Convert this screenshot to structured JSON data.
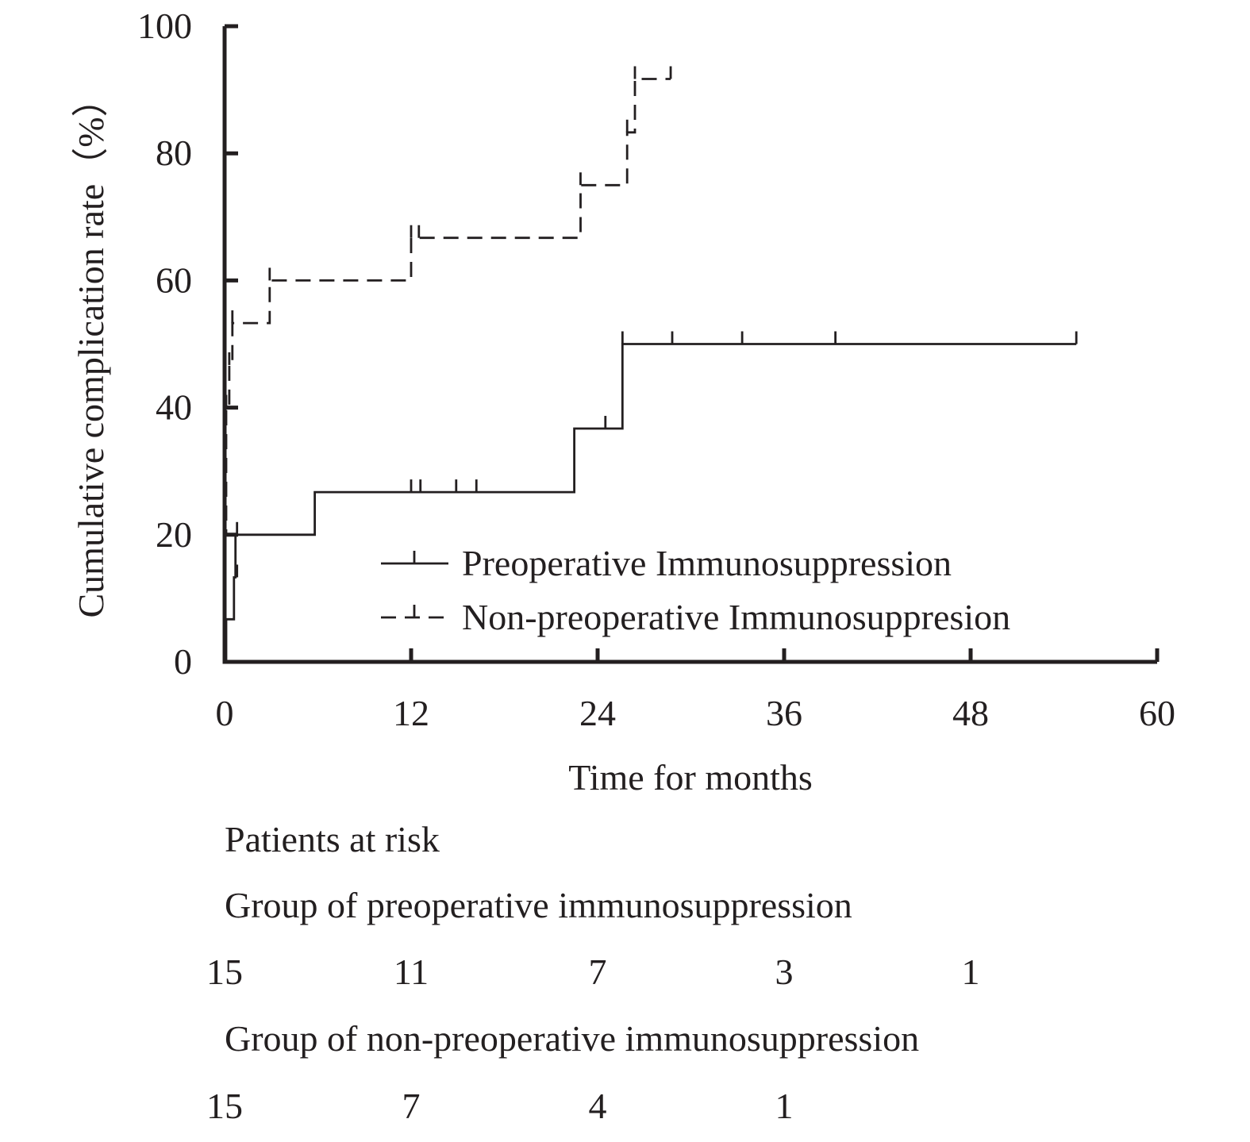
{
  "chart_data": {
    "type": "line",
    "subtype": "kaplan-meier-cumulative-incidence",
    "title": "",
    "xlabel": "Time for months",
    "ylabel": "Cumulative complication rate（%）",
    "xlim": [
      0,
      60
    ],
    "ylim": [
      0,
      100
    ],
    "x_ticks": [
      "0",
      "12",
      "24",
      "36",
      "48",
      "60"
    ],
    "y_ticks": [
      "0",
      "20",
      "40",
      "60",
      "80",
      "100"
    ],
    "grid": false,
    "legend_position": "bottom-right inside plot",
    "series": [
      {
        "name": "Preoperative Immunosuppression",
        "line_style": "solid",
        "steps": [
          [
            0,
            0
          ],
          [
            0.1,
            6.7
          ],
          [
            0.6,
            13.3
          ],
          [
            0.7,
            20
          ],
          [
            5.8,
            26.7
          ],
          [
            22.5,
            36.7
          ],
          [
            25.6,
            50
          ],
          [
            54.8,
            50
          ]
        ],
        "censored": [
          [
            0.8,
            13.3
          ],
          [
            0.8,
            20
          ],
          [
            12,
            26.7
          ],
          [
            12.6,
            26.7
          ],
          [
            14.9,
            26.7
          ],
          [
            16.2,
            26.7
          ],
          [
            24.5,
            36.7
          ],
          [
            25.6,
            50
          ],
          [
            28.8,
            50
          ],
          [
            33.3,
            50
          ],
          [
            39.3,
            50
          ],
          [
            54.8,
            50
          ]
        ]
      },
      {
        "name": "Non-preoperative Immunosuppresion",
        "line_style": "dashed",
        "steps": [
          [
            0,
            0
          ],
          [
            0.05,
            20
          ],
          [
            0.1,
            40
          ],
          [
            0.3,
            46.7
          ],
          [
            0.5,
            53.3
          ],
          [
            2.9,
            60
          ],
          [
            12,
            66.7
          ],
          [
            22.9,
            75
          ],
          [
            25.9,
            83.3
          ],
          [
            26.4,
            91.7
          ],
          [
            28.7,
            91.7
          ]
        ],
        "censored": [
          [
            0.1,
            40
          ],
          [
            0.3,
            46.7
          ],
          [
            0.5,
            53.3
          ],
          [
            2.9,
            60
          ],
          [
            12,
            66.7
          ],
          [
            12.5,
            66.7
          ],
          [
            22.9,
            75
          ],
          [
            25.9,
            83.3
          ],
          [
            26.4,
            91.7
          ],
          [
            28.7,
            91.7
          ]
        ]
      }
    ],
    "risk_table": {
      "title": "Patients at risk",
      "rows": [
        {
          "label": "Group of preoperative immunosuppression",
          "values": [
            [
              0,
              "15"
            ],
            [
              12,
              "11"
            ],
            [
              24,
              "7"
            ],
            [
              36,
              "3"
            ],
            [
              48,
              "1"
            ]
          ]
        },
        {
          "label": "Group of non-preoperative immunosuppression",
          "values": [
            [
              0,
              "15"
            ],
            [
              12,
              "7"
            ],
            [
              24,
              "4"
            ],
            [
              36,
              "1"
            ]
          ]
        }
      ]
    },
    "colors": {
      "line": "#231f20",
      "background": "#ffffff"
    }
  }
}
